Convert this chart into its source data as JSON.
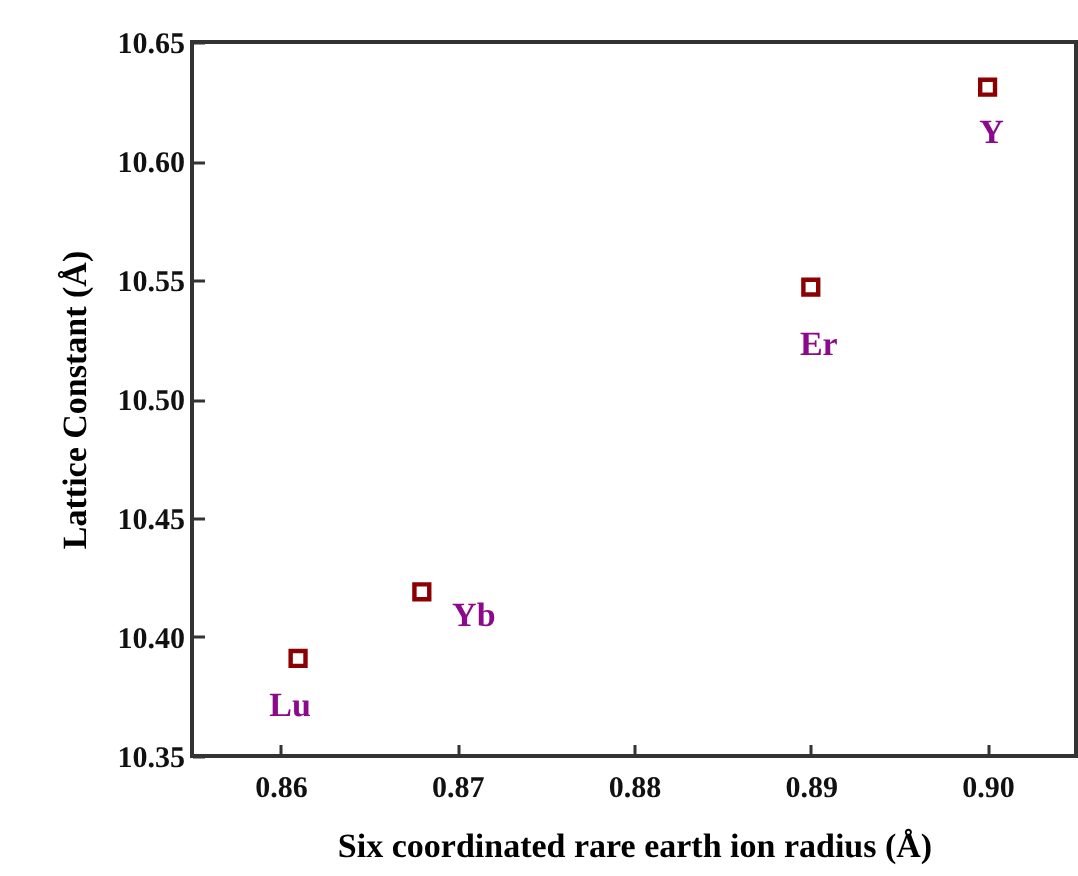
{
  "chart_data": {
    "type": "scatter",
    "xlabel": "Six coordinated rare earth ion radius (Å)",
    "ylabel": "Lattice Constant (Å)",
    "x": [
      0.861,
      0.868,
      0.89,
      0.9
    ],
    "series": [
      {
        "color": "#8b0000",
        "values": [
          10.391,
          10.419,
          10.547,
          10.631
        ]
      }
    ],
    "marker": "square",
    "annotations": [
      {
        "text": "Lu",
        "x": 0.861,
        "y": 10.391
      },
      {
        "text": "Yb",
        "x": 0.868,
        "y": 10.419
      },
      {
        "text": "Er",
        "x": 0.89,
        "y": 10.547
      },
      {
        "text": "Y",
        "x": 0.9,
        "y": 10.631
      }
    ],
    "xlim": [
      0.855,
      0.905
    ],
    "xticks": [
      0.86,
      0.87,
      0.88,
      0.89,
      {
        "value": 0.9,
        "label": "0.90"
      }
    ],
    "ylim": [
      10.35,
      10.65
    ],
    "yticks": [
      10.35,
      {
        "value": 10.4,
        "label": "10.40"
      },
      10.45,
      {
        "value": 10.5,
        "label": "10.50"
      },
      10.55,
      {
        "value": 10.6,
        "label": "10.60"
      },
      10.65
    ]
  }
}
